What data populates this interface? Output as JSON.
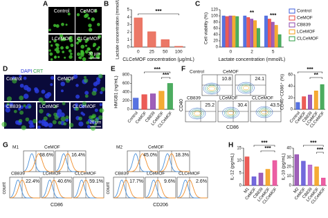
{
  "panel_labels": [
    "A",
    "B",
    "C",
    "D",
    "E",
    "F",
    "G",
    "H"
  ],
  "images_a": {
    "labels": [
      "Control",
      "CeMOF",
      "LCeMOF",
      "CLCeMOF"
    ],
    "scale_bar": "30 μm"
  },
  "images_d": {
    "stains": [
      "DAPI",
      "CRT"
    ],
    "labels": [
      "Control",
      "CeMOF",
      "CB839",
      "LCeMOF",
      "CLCeMOF"
    ],
    "scale_bar": "20 μm"
  },
  "flow_f": {
    "labels": [
      "Control",
      "CeMOF",
      "CB839",
      "LCeMOF",
      "CLCeMOF"
    ],
    "values": [
      "10.8",
      "24.1",
      "25.2",
      "30.4",
      "43.5"
    ],
    "x_label": "CD86",
    "y_label": "CD40"
  },
  "histograms_g": [
    {
      "labels": [
        "M1",
        "CeMOF",
        "CB839",
        "LCeMOF",
        "CLCeMOF"
      ],
      "values": [
        "68.6%",
        "16.4%",
        "22.4%",
        "40.6%",
        "59.1%"
      ],
      "x_label": "CD86",
      "y_label": "count"
    },
    {
      "labels": [
        "M2",
        "CeMOF",
        "CB839",
        "LCeMOF",
        "CLCeMOF"
      ],
      "values": [
        "45.0%",
        "18.3%",
        "17.7%",
        "9.6%",
        "2.6%"
      ],
      "x_label": "CD206",
      "y_label": "count"
    }
  ],
  "chart_data": [
    {
      "type": "bar",
      "y_label": "Lactate concentration (mmol/L)",
      "x_label": "CLCeMOF concentration (μg/mL)",
      "categories": [
        "0",
        "25",
        "50",
        "100"
      ],
      "values": [
        3.9,
        2.05,
        1.0,
        0.1
      ],
      "color": "#e8604c",
      "ylim": [
        0,
        5
      ],
      "yticks": [
        0,
        1,
        2,
        3,
        4,
        5
      ],
      "annotations": [
        "***"
      ]
    },
    {
      "type": "bar",
      "y_label": "Cell viability (%)",
      "x_label": "Lactate concentration (mmol/L)",
      "categories": [
        "0",
        "2",
        "5"
      ],
      "series": [
        {
          "name": "Control",
          "color": "#3b5bdb",
          "values": [
            100,
            100,
            100
          ]
        },
        {
          "name": "CeMOF",
          "color": "#e8413a",
          "values": [
            98,
            95,
            90
          ]
        },
        {
          "name": "CB839",
          "color": "#8e44ad",
          "values": [
            100,
            90,
            80
          ]
        },
        {
          "name": "LCeMOF",
          "color": "#f39c12",
          "values": [
            100,
            85,
            70
          ]
        },
        {
          "name": "CLCeMOF",
          "color": "#2e9e44",
          "values": [
            98,
            60,
            40
          ]
        }
      ],
      "ylim": [
        0,
        120
      ],
      "yticks": [
        0,
        20,
        40,
        60,
        80,
        100,
        120
      ],
      "annotations": [
        "**",
        "***"
      ]
    },
    {
      "type": "bar",
      "y_label": "HMGB1 (ng/mL)",
      "categories": [
        "Control",
        "CeMOF",
        "CB839",
        "LCeMOF",
        "CLCeMOF"
      ],
      "values": [
        260,
        340,
        360,
        420,
        600
      ],
      "colors": [
        "#3b5bdb",
        "#e8413a",
        "#8e44ad",
        "#f39c12",
        "#2e9e44"
      ],
      "ylim": [
        0,
        800
      ],
      "yticks": [
        0,
        200,
        400,
        600,
        800
      ],
      "annotations": [
        "***",
        "***"
      ]
    },
    {
      "type": "bar",
      "y_label": "CD40⁺CD86⁺ (%)",
      "categories": [
        "Control",
        "CeMOF",
        "CB839",
        "LCeMOF",
        "CLCeMOF"
      ],
      "values": [
        12,
        22,
        25,
        32,
        43
      ],
      "colors": [
        "#3b5bdb",
        "#e8413a",
        "#8e44ad",
        "#f39c12",
        "#2e9e44"
      ],
      "ylim": [
        0,
        60
      ],
      "yticks": [
        0,
        20,
        40,
        60
      ],
      "annotations": [
        "***",
        "**"
      ]
    },
    {
      "type": "bar",
      "y_label": "IL-12 (pg/mL)",
      "categories": [
        "M1",
        "CeMOF",
        "CB839",
        "LCeMOF",
        "CLCeMOF"
      ],
      "values": [
        11.5,
        3.5,
        5,
        6.5,
        10
      ],
      "colors": [
        "#e8413a",
        "#5b4fd6",
        "#8e44ad",
        "#f39c12",
        "#e84393"
      ],
      "ylim": [
        0,
        15
      ],
      "yticks": [
        0,
        5,
        10,
        15
      ],
      "annotations": [
        "***",
        "***"
      ]
    },
    {
      "type": "bar",
      "y_label": "IL-10 (pg/mL)",
      "categories": [
        "M2",
        "CeMOF",
        "CB839",
        "LCeMOF",
        "CLCeMOF"
      ],
      "values": [
        33,
        26,
        22,
        20,
        8
      ],
      "colors": [
        "#8e44ad",
        "#5b4fd6",
        "#b05cc8",
        "#f39c12",
        "#e84393"
      ],
      "ylim": [
        0,
        40
      ],
      "yticks": [
        0,
        10,
        20,
        30,
        40
      ],
      "annotations": [
        "***",
        "***"
      ]
    }
  ]
}
